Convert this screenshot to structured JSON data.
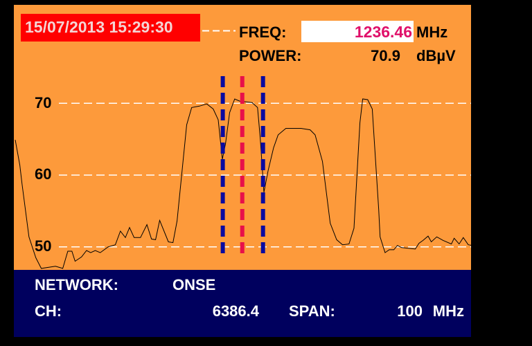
{
  "header": {
    "datetime": "15/07/2013 15:29:30",
    "freq_label": "FREQ:",
    "freq_value": "1236.46",
    "freq_unit": "MHz",
    "power_label": "POWER:",
    "power_value": "70.9",
    "power_unit": "dBµV"
  },
  "footer": {
    "network_label": "NETWORK:",
    "network_value": "ONSE",
    "ch_label": "CH:",
    "ch_value": "6386.4",
    "span_label": "SPAN:",
    "span_value": "100",
    "span_unit": "MHz"
  },
  "colors": {
    "background": "#fd9a3b",
    "info_panel": "#00005e",
    "date_badge": "#ff0000",
    "marker_center": "#e8104a",
    "marker_bounds": "#0a0aa0",
    "trace": "#000000",
    "grid": "#ffffff"
  },
  "chart_data": {
    "type": "line",
    "xlabel": "",
    "ylabel": "",
    "xlim": [
      1186.5,
      1286.5
    ],
    "ylim": [
      46.8,
      83.7
    ],
    "grid": "horizontal dashed",
    "yticks": [
      70,
      60,
      50
    ],
    "ytick_labels": [
      "70",
      "60",
      "50"
    ],
    "markers": {
      "center": 1236.46,
      "lower": 1232.2,
      "upper": 1241.0
    },
    "x": [
      1186.8,
      1187.8,
      1188.3,
      1189.8,
      1191.3,
      1192.5,
      1195.6,
      1197.2,
      1198.3,
      1199.2,
      1199.9,
      1201.3,
      1202.4,
      1203.3,
      1204.3,
      1205.4,
      1207.1,
      1208.7,
      1209.8,
      1210.9,
      1211.8,
      1212.8,
      1214.2,
      1215.6,
      1216.6,
      1217.5,
      1218.4,
      1220.3,
      1221.3,
      1222.2,
      1224.3,
      1225.4,
      1227.1,
      1228.7,
      1230.1,
      1231.2,
      1232.1,
      1232.8,
      1233.7,
      1234.8,
      1235.9,
      1237.2,
      1238.6,
      1239.8,
      1240.4,
      1241.2,
      1242.1,
      1243.3,
      1244.3,
      1246.0,
      1249.3,
      1251.3,
      1252.4,
      1254.0,
      1255.7,
      1257.1,
      1258.4,
      1259.8,
      1260.9,
      1262.2,
      1262.8,
      1263.9,
      1264.9,
      1266.3,
      1266.6,
      1267.7,
      1268.6,
      1269.6,
      1270.4,
      1271.3,
      1274.3,
      1275.1,
      1276.0,
      1277.1,
      1277.8,
      1279.0,
      1280.4,
      1282.2,
      1282.8,
      1283.9,
      1284.8,
      1285.9,
      1286.8
    ],
    "y": [
      64.9,
      61.4,
      58.7,
      51.4,
      48.5,
      47.0,
      47.3,
      47.0,
      49.4,
      49.4,
      48.0,
      48.6,
      49.5,
      49.2,
      49.5,
      49.2,
      50.0,
      50.3,
      52.2,
      51.3,
      52.7,
      51.3,
      51.3,
      53.1,
      51.1,
      51.0,
      53.7,
      50.7,
      50.6,
      53.6,
      67.0,
      69.4,
      69.6,
      69.9,
      69.2,
      67.7,
      62.2,
      64.4,
      68.7,
      70.6,
      70.3,
      70.2,
      70.1,
      69.4,
      65.1,
      57.6,
      60.6,
      63.8,
      65.6,
      66.5,
      66.5,
      66.3,
      65.6,
      61.9,
      53.3,
      51.0,
      50.3,
      50.4,
      52.6,
      67.3,
      70.6,
      70.5,
      69.2,
      55.2,
      51.4,
      49.2,
      49.6,
      49.6,
      50.2,
      49.9,
      49.7,
      50.5,
      50.9,
      51.5,
      50.7,
      51.4,
      50.9,
      50.4,
      51.2,
      50.4,
      51.3,
      50.3,
      50.2
    ]
  }
}
